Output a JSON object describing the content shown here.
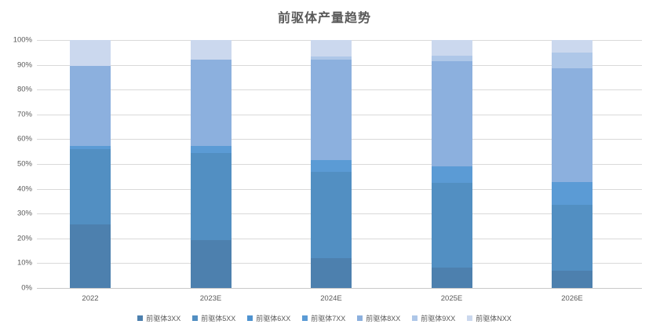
{
  "title": "前驱体产量趋势",
  "chart_data": {
    "type": "bar",
    "subtype": "100%-stacked-column",
    "title": "前驱体产量趋势",
    "categories": [
      "2022",
      "2023E",
      "2024E",
      "2025E",
      "2026E"
    ],
    "series": [
      {
        "name": "前驱体3XX",
        "color": "#4d80ae",
        "values": [
          25.5,
          19.2,
          12.0,
          8.3,
          7.0
        ]
      },
      {
        "name": "前驱体5XX",
        "color": "#528fc2",
        "values": [
          30.4,
          35.1,
          34.8,
          34.0,
          26.5
        ]
      },
      {
        "name": "前驱体6XX",
        "color": "#4f93d0",
        "values": [
          0,
          0,
          0,
          0,
          0
        ]
      },
      {
        "name": "前驱体7XX",
        "color": "#5b9bd5",
        "values": [
          1.3,
          3.1,
          4.7,
          6.8,
          9.1
        ]
      },
      {
        "name": "前驱体8XX",
        "color": "#8cb0de",
        "values": [
          32.3,
          34.6,
          40.5,
          42.3,
          46.0
        ]
      },
      {
        "name": "前驱体9XX",
        "color": "#aec7e8",
        "values": [
          0,
          0,
          1.5,
          2.4,
          6.4
        ]
      },
      {
        "name": "前驱体NXX",
        "color": "#cbd8ee",
        "values": [
          10.5,
          8.0,
          6.5,
          6.2,
          5.0
        ]
      }
    ],
    "xlabel": "",
    "ylabel": "",
    "ylim": [
      0,
      100
    ],
    "y_ticks": [
      "0%",
      "10%",
      "20%",
      "30%",
      "40%",
      "50%",
      "60%",
      "70%",
      "80%",
      "90%",
      "100%"
    ],
    "grid": true,
    "gridline_color": "#d9d9d9",
    "legend_position": "bottom",
    "text_color": "#595959"
  }
}
